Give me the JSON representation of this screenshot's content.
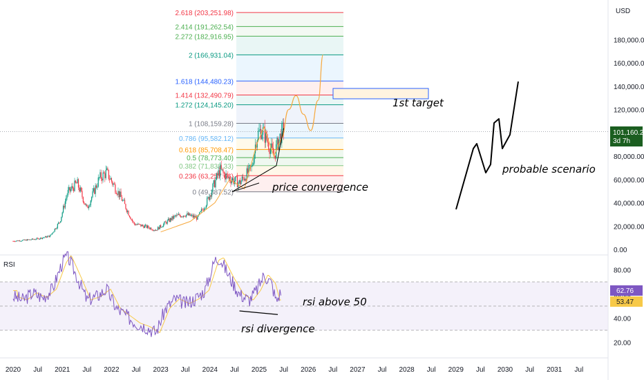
{
  "chart_data": {
    "type": "candlestick",
    "currency": "USD",
    "price_axis": {
      "ticks": [
        "180,000.00",
        "160,000.00",
        "140,000.00",
        "120,000.00",
        "80,000.00",
        "60,000.00",
        "40,000.00",
        "20,000.00",
        "0.00"
      ],
      "last_price": "101,160.24",
      "countdown": "3d 7h",
      "ylim": [
        0,
        210000
      ]
    },
    "time_axis": [
      "2020",
      "Jul",
      "2021",
      "Jul",
      "2022",
      "Jul",
      "2023",
      "Jul",
      "2024",
      "Jul",
      "2025",
      "Jul",
      "2026",
      "Jul",
      "2027",
      "Jul",
      "2028",
      "Jul",
      "2029",
      "Jul",
      "2030",
      "Jul",
      "2031",
      "Jul"
    ],
    "price_series": {
      "x": [
        2020.0,
        2020.25,
        2020.5,
        2020.75,
        2020.95,
        2021.1,
        2021.3,
        2021.5,
        2021.75,
        2021.9,
        2022.2,
        2022.45,
        2022.7,
        2022.9,
        2023.1,
        2023.3,
        2023.5,
        2023.75,
        2023.95,
        2024.2,
        2024.35,
        2024.6,
        2024.85,
        2024.95,
        2025.05,
        2025.15,
        2025.3,
        2025.4,
        2025.5
      ],
      "close": [
        7200,
        8000,
        9200,
        11500,
        24000,
        48000,
        57000,
        35000,
        61000,
        66000,
        44000,
        22000,
        19500,
        16800,
        23000,
        28500,
        30000,
        27000,
        42000,
        68000,
        62000,
        57000,
        70000,
        97000,
        103000,
        95000,
        80000,
        94000,
        104000
      ]
    },
    "fib_levels": [
      {
        "label": "0 (49,387.52)",
        "value": 49387.52,
        "color": "#787b86"
      },
      {
        "label": "0.236 (63,257.66)",
        "value": 63257.66,
        "color": "#f23645"
      },
      {
        "label": "0.382 (71,838.33)",
        "value": 71838.33,
        "color": "#81c784"
      },
      {
        "label": "0.5 (78,773.40)",
        "value": 78773.4,
        "color": "#4caf50"
      },
      {
        "label": "0.618 (85,708.47)",
        "value": 85708.47,
        "color": "#ff9800"
      },
      {
        "label": "0.786 (95,582.12)",
        "value": 95582.12,
        "color": "#64b5f6"
      },
      {
        "label": "1 (108,159.28)",
        "value": 108159.28,
        "color": "#787b86"
      },
      {
        "label": "1.272 (124,145.20)",
        "value": 124145.2,
        "color": "#089981"
      },
      {
        "label": "1.414 (132,490.79)",
        "value": 132490.79,
        "color": "#f23645"
      },
      {
        "label": "1.618 (144,480.23)",
        "value": 144480.23,
        "color": "#2962ff"
      },
      {
        "label": "2 (166,931.04)",
        "value": 166931.04,
        "color": "#089981"
      },
      {
        "label": "2.272 (182,916.95)",
        "value": 182916.95,
        "color": "#4caf50"
      },
      {
        "label": "2.414 (191,262.54)",
        "value": 191262.54,
        "color": "#4caf50"
      },
      {
        "label": "2.618 (203,251.98)",
        "value": 203251.98,
        "color": "#f23645"
      }
    ],
    "projection": {
      "x": [
        2025.45,
        2025.6,
        2025.75,
        2025.9,
        2026.05,
        2026.2,
        2026.3
      ],
      "y": [
        95000,
        120000,
        132000,
        116000,
        102000,
        128000,
        166931
      ]
    },
    "rsi": {
      "title": "RSI",
      "ticks": [
        "80.00",
        "60.00",
        "40.00",
        "20.00"
      ],
      "value": "62.76",
      "ma_value": "53.47",
      "bands": [
        70,
        50,
        30
      ],
      "ylim": [
        15,
        95
      ],
      "x": [
        2020.0,
        2020.2,
        2020.4,
        2020.6,
        2020.8,
        2021.0,
        2021.1,
        2021.3,
        2021.5,
        2021.7,
        2021.9,
        2022.1,
        2022.3,
        2022.5,
        2022.7,
        2022.9,
        2023.1,
        2023.3,
        2023.5,
        2023.7,
        2023.9,
        2024.1,
        2024.2,
        2024.4,
        2024.6,
        2024.8,
        2024.95,
        2025.1,
        2025.25,
        2025.35,
        2025.45
      ],
      "values": [
        58,
        55,
        61,
        57,
        64,
        86,
        92,
        74,
        55,
        58,
        64,
        48,
        42,
        36,
        33,
        28,
        48,
        56,
        52,
        56,
        63,
        88,
        90,
        74,
        60,
        55,
        63,
        76,
        69,
        54,
        62.76
      ]
    },
    "annotations": {
      "price_convergence": "price convergence",
      "target": "1st target",
      "scenario": "probable scenario",
      "rsi_above": "rsi above 50",
      "rsi_divergence": "rsi divergence"
    },
    "colors": {
      "up": "#089981",
      "down": "#f23645",
      "rsi_line": "#7e57c2",
      "rsi_ma": "#f7c948",
      "projection": "#f7a83c",
      "last_price_bg": "#1b5e20"
    }
  }
}
